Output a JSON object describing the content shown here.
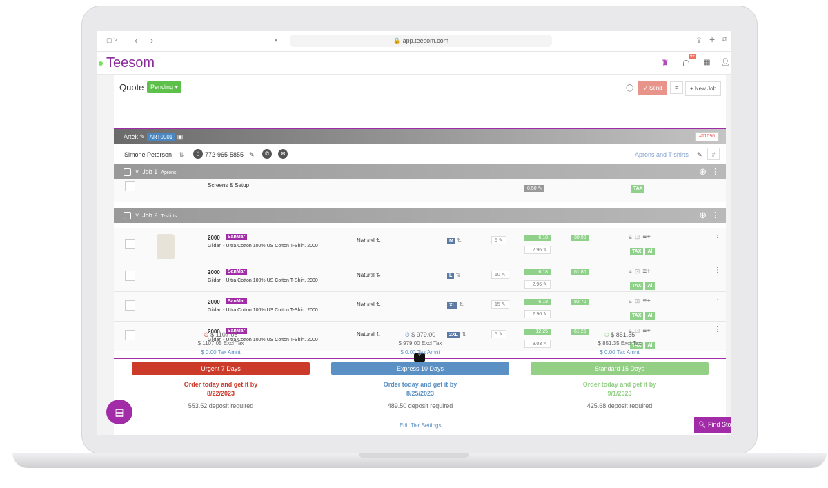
{
  "browser": {
    "url": "app.teesom.com"
  },
  "app": {
    "logo": "Teesom",
    "notif_badge": "9+"
  },
  "quote": {
    "title": "Quote",
    "status": "Pending",
    "send": "Send",
    "new_job": "+ New Job"
  },
  "account": {
    "name": "Artek",
    "art_code": "ART0001",
    "order_no": "#11096"
  },
  "contact": {
    "name": "Simone Peterson",
    "phone": "772-965-5855",
    "project": "Aprons and T-shirts"
  },
  "jobs": [
    {
      "label": "Job 1",
      "sub": "Aprons",
      "item": "Screens & Setup",
      "price": "0.50",
      "tax": "TAX"
    },
    {
      "label": "Job 2",
      "sub": "T-shirts"
    }
  ],
  "rows": [
    {
      "style": "2000",
      "vendor": "SanMar",
      "desc": "Gildan - Ultra Cotton 100% US Cotton T-Shirt. 2000",
      "color": "Natural",
      "size": "M",
      "qty": "5",
      "price": "6.18",
      "cost": "2.96",
      "total": "30.90",
      "tax": "TAX",
      "all": "All"
    },
    {
      "style": "2000",
      "vendor": "SanMar",
      "desc": "Gildan - Ultra Cotton 100% US Cotton T-Shirt. 2000",
      "color": "Natural",
      "size": "L",
      "qty": "10",
      "price": "6.18",
      "cost": "2.96",
      "total": "61.80",
      "tax": "TAX",
      "all": "All"
    },
    {
      "style": "2000",
      "vendor": "SanMar",
      "desc": "Gildan - Ultra Cotton 100% US Cotton T-Shirt. 2000",
      "color": "Natural",
      "size": "XL",
      "qty": "15",
      "price": "6.18",
      "cost": "2.96",
      "total": "92.70",
      "tax": "TAX",
      "all": "All"
    },
    {
      "style": "2000",
      "vendor": "SanMar",
      "desc": "Gildan - Ultra Cotton 100% US Cotton T-Shirt. 2000",
      "color": "Natural",
      "size": "2XL",
      "qty": "5",
      "price": "12.25",
      "cost": "9.03",
      "total": "61.25",
      "tax": "TAX",
      "all": "All"
    }
  ],
  "tiers": [
    {
      "total": "$ 1107.05",
      "excl": "$ 1107.05 Excl Tax",
      "tax": "$ 0.00 Tax Amnt",
      "name": "Urgent 7 Days",
      "order": "Order today and get it by",
      "date": "8/22/2023",
      "deposit": "553.52 deposit required",
      "color": "#cc3a2a"
    },
    {
      "total": "$ 979.00",
      "excl": "$ 979.00 Excl Tax",
      "tax": "$ 0.00 Tax Amnt",
      "name": "Express 10 Days",
      "order": "Order today and get it by",
      "date": "8/25/2023",
      "deposit": "489.50 deposit required",
      "color": "#5a90c4"
    },
    {
      "total": "$ 851.35",
      "excl": "$ 851.35 Excl Tax",
      "tax": "$ 0.00 Tax Amnt",
      "name": "Standard 15 Days",
      "order": "Order today and get it by",
      "date": "9/1/2023",
      "deposit": "425.68 deposit required",
      "color": "#94cf86"
    }
  ],
  "footer": {
    "edit_tiers": "Edit Tier Settings",
    "find_stock": "Find Stock"
  },
  "colors": {
    "brand": "#a22ba8",
    "pending": "#5cc04a"
  }
}
